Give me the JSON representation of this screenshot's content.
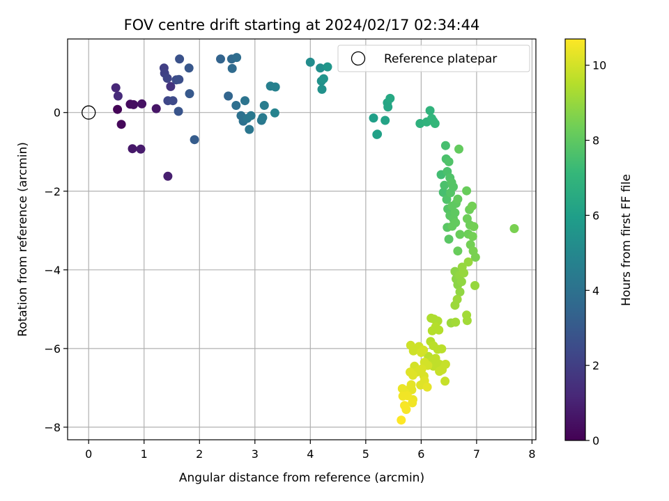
{
  "chart_data": {
    "type": "scatter",
    "title": "FOV centre drift starting at 2024/02/17 02:34:44",
    "xlabel": "Angular distance from reference (arcmin)",
    "ylabel": "Rotation from reference (arcmin)",
    "xlim": [
      -0.38,
      8.07
    ],
    "ylim": [
      -8.32,
      1.87
    ],
    "xticks": [
      0,
      1,
      2,
      3,
      4,
      5,
      6,
      7,
      8
    ],
    "yticks": [
      -8,
      -6,
      -4,
      -2,
      0
    ],
    "grid": true,
    "legend": {
      "position": "top-right",
      "entries": [
        "Reference platepar"
      ]
    },
    "reference_point": {
      "x": 0,
      "y": 0
    },
    "colorbar": {
      "label": "Hours from first FF file",
      "min": 0,
      "max": 10.7,
      "ticks": [
        0,
        2,
        4,
        6,
        8,
        10
      ],
      "colormap": [
        "#440154",
        "#482878",
        "#3e4989",
        "#31688e",
        "#26828e",
        "#1f9e89",
        "#35b779",
        "#6ece58",
        "#b5de2b",
        "#fde725"
      ]
    },
    "points": [
      [
        0.52,
        0.08,
        0.1
      ],
      [
        0.59,
        -0.3,
        0.2
      ],
      [
        0.75,
        0.21,
        0.3
      ],
      [
        0.81,
        0.2,
        0.4
      ],
      [
        0.96,
        0.22,
        0.5
      ],
      [
        1.22,
        0.1,
        0.6
      ],
      [
        0.79,
        -0.92,
        0.7
      ],
      [
        0.94,
        -0.93,
        0.8
      ],
      [
        1.43,
        -1.62,
        0.9
      ],
      [
        0.49,
        0.63,
        1.2
      ],
      [
        0.53,
        0.42,
        1.3
      ],
      [
        1.48,
        0.66,
        1.6
      ],
      [
        1.36,
        1.13,
        2.0
      ],
      [
        1.37,
        1.0,
        2.1
      ],
      [
        1.42,
        0.87,
        2.2
      ],
      [
        1.43,
        0.3,
        2.3
      ],
      [
        1.52,
        0.3,
        2.4
      ],
      [
        1.58,
        0.83,
        2.5
      ],
      [
        1.63,
        0.84,
        2.6
      ],
      [
        1.64,
        1.36,
        2.7
      ],
      [
        1.62,
        0.03,
        2.8
      ],
      [
        1.81,
        1.13,
        2.9
      ],
      [
        1.82,
        0.48,
        3.0
      ],
      [
        1.91,
        -0.69,
        3.1
      ],
      [
        2.38,
        1.36,
        3.4
      ],
      [
        2.52,
        0.42,
        3.5
      ],
      [
        2.58,
        1.36,
        3.6
      ],
      [
        2.59,
        1.12,
        3.7
      ],
      [
        2.67,
        1.4,
        3.8
      ],
      [
        2.66,
        0.18,
        3.9
      ],
      [
        2.75,
        -0.08,
        4.0
      ],
      [
        2.79,
        -0.22,
        4.0
      ],
      [
        2.82,
        0.3,
        4.1
      ],
      [
        2.86,
        -0.15,
        4.2
      ],
      [
        2.9,
        -0.43,
        4.2
      ],
      [
        2.93,
        -0.08,
        4.3
      ],
      [
        3.12,
        -0.2,
        4.3
      ],
      [
        3.14,
        -0.13,
        4.4
      ],
      [
        3.17,
        0.18,
        4.5
      ],
      [
        3.28,
        0.67,
        4.6
      ],
      [
        3.37,
        0.65,
        4.7
      ],
      [
        3.36,
        -0.01,
        4.8
      ],
      [
        4.0,
        1.28,
        5.2
      ],
      [
        4.18,
        1.13,
        5.3
      ],
      [
        4.2,
        0.8,
        5.4
      ],
      [
        4.21,
        0.59,
        5.4
      ],
      [
        4.24,
        0.86,
        5.5
      ],
      [
        4.31,
        1.16,
        5.6
      ],
      [
        5.14,
        -0.14,
        6.0
      ],
      [
        5.2,
        -0.56,
        6.1
      ],
      [
        5.21,
        -0.55,
        6.1
      ],
      [
        5.35,
        -0.2,
        6.2
      ],
      [
        5.39,
        0.25,
        6.3
      ],
      [
        5.4,
        0.14,
        6.3
      ],
      [
        5.44,
        0.36,
        6.4
      ],
      [
        5.98,
        -0.28,
        6.8
      ],
      [
        6.1,
        -0.24,
        6.9
      ],
      [
        6.16,
        0.05,
        6.9
      ],
      [
        6.19,
        -0.15,
        7.0
      ],
      [
        6.22,
        -0.22,
        7.0
      ],
      [
        6.25,
        -0.28,
        7.1
      ],
      [
        6.36,
        -1.58,
        7.4
      ],
      [
        6.4,
        -2.03,
        7.5
      ],
      [
        6.44,
        -0.84,
        7.5
      ],
      [
        6.45,
        -1.18,
        7.6
      ],
      [
        6.47,
        -1.5,
        7.6
      ],
      [
        6.42,
        -1.85,
        7.6
      ],
      [
        6.46,
        -2.21,
        7.7
      ],
      [
        6.5,
        -1.25,
        7.7
      ],
      [
        6.52,
        -1.66,
        7.7
      ],
      [
        6.48,
        -2.45,
        7.8
      ],
      [
        6.53,
        -2.04,
        7.8
      ],
      [
        6.55,
        -1.78,
        7.8
      ],
      [
        6.58,
        -1.89,
        7.8
      ],
      [
        6.47,
        -2.92,
        7.9
      ],
      [
        6.52,
        -2.62,
        7.9
      ],
      [
        6.5,
        -3.22,
        7.9
      ],
      [
        6.56,
        -2.38,
        8.0
      ],
      [
        6.58,
        -2.7,
        8.0
      ],
      [
        6.61,
        -2.55,
        8.0
      ],
      [
        6.63,
        -2.31,
        8.0
      ],
      [
        6.66,
        -2.2,
        8.1
      ],
      [
        6.56,
        -2.89,
        8.1
      ],
      [
        6.68,
        -0.93,
        8.1
      ],
      [
        6.62,
        -2.8,
        8.1
      ],
      [
        6.66,
        -3.52,
        8.2
      ],
      [
        6.7,
        -3.1,
        8.2
      ],
      [
        6.82,
        -1.99,
        8.2
      ],
      [
        6.83,
        -2.7,
        8.3
      ],
      [
        6.85,
        -3.09,
        8.3
      ],
      [
        6.87,
        -2.47,
        8.3
      ],
      [
        6.88,
        -2.86,
        8.3
      ],
      [
        6.89,
        -3.36,
        8.4
      ],
      [
        6.92,
        -2.38,
        8.4
      ],
      [
        6.93,
        -3.15,
        8.4
      ],
      [
        6.95,
        -2.9,
        8.4
      ],
      [
        6.94,
        -3.52,
        8.5
      ],
      [
        6.98,
        -3.68,
        8.5
      ],
      [
        7.68,
        -2.95,
        8.5
      ],
      [
        6.61,
        -4.04,
        8.8
      ],
      [
        6.63,
        -4.23,
        8.8
      ],
      [
        6.66,
        -4.38,
        8.8
      ],
      [
        6.69,
        -4.14,
        8.9
      ],
      [
        6.7,
        -4.56,
        8.9
      ],
      [
        6.73,
        -4.3,
        8.9
      ],
      [
        6.77,
        -4.08,
        9.0
      ],
      [
        6.74,
        -3.93,
        9.0
      ],
      [
        6.85,
        -3.8,
        9.0
      ],
      [
        6.97,
        -4.4,
        9.0
      ],
      [
        6.61,
        -4.9,
        9.1
      ],
      [
        6.65,
        -4.75,
        9.1
      ],
      [
        6.54,
        -5.35,
        9.1
      ],
      [
        6.62,
        -5.33,
        9.2
      ],
      [
        6.82,
        -5.15,
        9.2
      ],
      [
        6.83,
        -5.29,
        9.2
      ],
      [
        6.18,
        -5.23,
        9.4
      ],
      [
        6.23,
        -5.25,
        9.4
      ],
      [
        6.3,
        -5.3,
        9.4
      ],
      [
        6.2,
        -5.55,
        9.5
      ],
      [
        6.26,
        -5.45,
        9.5
      ],
      [
        6.32,
        -5.53,
        9.5
      ],
      [
        6.17,
        -5.82,
        9.5
      ],
      [
        6.22,
        -5.93,
        9.6
      ],
      [
        6.3,
        -6.02,
        9.6
      ],
      [
        6.37,
        -6.01,
        9.6
      ],
      [
        6.13,
        -6.2,
        9.6
      ],
      [
        6.18,
        -6.33,
        9.7
      ],
      [
        6.22,
        -6.45,
        9.7
      ],
      [
        6.26,
        -6.25,
        9.7
      ],
      [
        6.33,
        -6.4,
        9.7
      ],
      [
        6.38,
        -6.54,
        9.8
      ],
      [
        6.44,
        -6.4,
        9.8
      ],
      [
        6.43,
        -6.83,
        9.8
      ],
      [
        6.33,
        -6.58,
        9.8
      ],
      [
        5.81,
        -5.92,
        9.9
      ],
      [
        5.86,
        -6.06,
        9.9
      ],
      [
        5.96,
        -5.95,
        9.9
      ],
      [
        6.0,
        -6.1,
        10.0
      ],
      [
        6.04,
        -6.04,
        10.0
      ],
      [
        6.06,
        -6.35,
        10.0
      ],
      [
        6.12,
        -6.43,
        10.0
      ],
      [
        5.88,
        -6.45,
        10.0
      ],
      [
        5.92,
        -6.6,
        10.1
      ],
      [
        5.97,
        -6.55,
        10.1
      ],
      [
        6.01,
        -6.52,
        10.1
      ],
      [
        6.05,
        -6.7,
        10.1
      ],
      [
        5.8,
        -6.6,
        10.2
      ],
      [
        5.85,
        -6.68,
        10.2
      ],
      [
        5.99,
        -6.93,
        10.2
      ],
      [
        6.06,
        -6.82,
        10.2
      ],
      [
        6.11,
        -6.98,
        10.3
      ],
      [
        5.82,
        -6.92,
        10.3
      ],
      [
        5.77,
        -7.05,
        10.3
      ],
      [
        5.83,
        -7.05,
        10.3
      ],
      [
        5.85,
        -7.3,
        10.4
      ],
      [
        5.66,
        -7.02,
        10.4
      ],
      [
        5.71,
        -7.12,
        10.4
      ],
      [
        5.75,
        -7.2,
        10.5
      ],
      [
        5.84,
        -7.38,
        10.5
      ],
      [
        5.67,
        -7.21,
        10.5
      ],
      [
        5.7,
        -7.45,
        10.6
      ],
      [
        5.73,
        -7.55,
        10.6
      ],
      [
        5.64,
        -7.82,
        10.7
      ]
    ]
  }
}
